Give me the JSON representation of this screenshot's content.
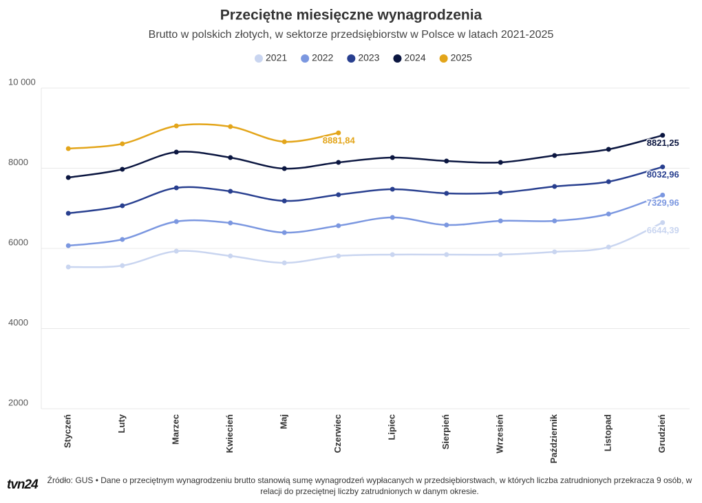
{
  "chart_data": {
    "type": "line",
    "title": "Przeciętne miesięczne wynagrodzenia",
    "subtitle": "Brutto w polskich złotych, w sektorze przedsiębiorstw w Polsce w latach 2021-2025",
    "categories": [
      "Styczeń",
      "Luty",
      "Marzec",
      "Kwiecień",
      "Maj",
      "Czerwiec",
      "Lipiec",
      "Sierpień",
      "Wrzesień",
      "Październik",
      "Listopad",
      "Grudzień"
    ],
    "ylim": [
      2000,
      10000
    ],
    "yticks": [
      2000,
      4000,
      6000,
      8000,
      {
        "value": 10000,
        "label": "10 000"
      }
    ],
    "grid": true,
    "legend": "top",
    "series": [
      {
        "name": "2021",
        "color": "#c9d5f0",
        "values": [
          5537,
          5571,
          5931,
          5811,
          5640,
          5811,
          5845,
          5845,
          5845,
          5914,
          6034,
          6644.39
        ],
        "value_labels": [
          null,
          null,
          null,
          null,
          null,
          null,
          null,
          null,
          null,
          null,
          null,
          "6644,39"
        ]
      },
      {
        "name": "2022",
        "color": "#7b97e0",
        "values": [
          6069,
          6223,
          6670,
          6635,
          6395,
          6567,
          6773,
          6584,
          6687,
          6687,
          6858,
          7329.96
        ],
        "value_labels": [
          null,
          null,
          null,
          null,
          null,
          null,
          null,
          null,
          null,
          null,
          null,
          "7329,96"
        ]
      },
      {
        "name": "2023",
        "color": "#283f8f",
        "values": [
          6876,
          7064,
          7511,
          7425,
          7185,
          7339,
          7476,
          7373,
          7391,
          7545,
          7665,
          8032.96
        ],
        "value_labels": [
          null,
          null,
          null,
          null,
          null,
          null,
          null,
          null,
          null,
          null,
          null,
          "8032,96"
        ]
      },
      {
        "name": "2024",
        "color": "#0b1640",
        "values": [
          7768,
          7974,
          8403,
          8266,
          7991,
          8146,
          8266,
          8180,
          8146,
          8318,
          8472,
          8821.25
        ],
        "value_labels": [
          null,
          null,
          null,
          null,
          null,
          null,
          null,
          null,
          null,
          null,
          null,
          "8821,25"
        ]
      },
      {
        "name": "2025",
        "color": "#e3a51a",
        "values": [
          8489,
          8609,
          9056,
          9039,
          8661,
          8881.84,
          null,
          null,
          null,
          null,
          null,
          null
        ],
        "value_labels": [
          null,
          null,
          null,
          null,
          null,
          "8881,84",
          null,
          null,
          null,
          null,
          null,
          null
        ]
      }
    ]
  },
  "footer": {
    "logo": "tvn24",
    "source": "Źródło: GUS • Dane o przeciętnym wynagrodzeniu brutto stanowią sumę wynagrodzeń wypłacanych w przedsiębiorstwach, w których liczba zatrudnionych przekracza 9 osób, w relacji do przeciętnej liczby zatrudnionych w danym okresie."
  }
}
